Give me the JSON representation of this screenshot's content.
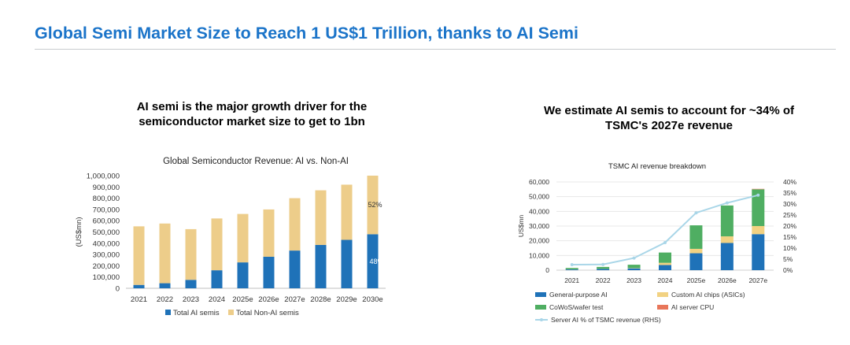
{
  "page": {
    "title": "Global Semi Market Size to Reach 1 US$1 Trillion, thanks to AI Semi",
    "left_heading": [
      "AI semi is the major growth driver for the",
      "semiconductor market size to get to 1bn"
    ],
    "right_heading": [
      "We estimate AI semis to account for ~34% of",
      "TSMC's 2027e revenue"
    ],
    "colors": {
      "title": "#1b74c9",
      "ai_blue": "#1f72b8",
      "non_ai_tan": "#edcd8a",
      "custom_ai": "#f2d282",
      "cowos_green": "#4fae62",
      "cpu_orange": "#e8765a",
      "line_lightblue": "#a9d6e8"
    }
  },
  "chart_data": [
    {
      "type": "bar",
      "title": "Global Semiconductor Revenue: AI vs. Non-AI",
      "ylabel": "(US$mn)",
      "xlabel": "",
      "stacked": true,
      "categories": [
        "2021",
        "2022",
        "2023",
        "2024",
        "2025e",
        "2026e",
        "2027e",
        "2028e",
        "2029e",
        "2030e"
      ],
      "ylim": [
        0,
        1000000
      ],
      "yticks": [
        "0",
        "100,000",
        "200,000",
        "300,000",
        "400,000",
        "500,000",
        "600,000",
        "700,000",
        "800,000",
        "900,000",
        "1,000,000"
      ],
      "series": [
        {
          "name": "Total AI semis",
          "color": "#1f72b8",
          "values": [
            30000,
            45000,
            75000,
            160000,
            230000,
            280000,
            335000,
            385000,
            430000,
            480000
          ]
        },
        {
          "name": "Total Non-AI semis",
          "color": "#edcd8a",
          "values": [
            520000,
            530000,
            450000,
            460000,
            430000,
            420000,
            465000,
            485000,
            490000,
            520000
          ]
        }
      ],
      "annotations": [
        "52%",
        "48%"
      ],
      "legend": "bottom",
      "grid": false
    },
    {
      "type": "bar",
      "title": "TSMC AI revenue breakdown",
      "ylabel": "US$mn",
      "xlabel": "",
      "stacked": true,
      "categories": [
        "2021",
        "2022",
        "2023",
        "2024",
        "2025e",
        "2026e",
        "2027e"
      ],
      "ylim": [
        0,
        60000
      ],
      "yticks": [
        "0",
        "10,000",
        "20,000",
        "30,000",
        "40,000",
        "50,000",
        "60,000"
      ],
      "y2lim": [
        0,
        40
      ],
      "y2ticks": [
        "0%",
        "5%",
        "10%",
        "15%",
        "20%",
        "25%",
        "30%",
        "35%",
        "40%"
      ],
      "series": [
        {
          "name": "General-purpose AI",
          "kind": "bar",
          "color": "#1f72b8",
          "values": [
            500,
            800,
            1200,
            3500,
            11500,
            18500,
            24500
          ]
        },
        {
          "name": "Custom AI chips (ASICs)",
          "kind": "bar",
          "color": "#f2d282",
          "values": [
            100,
            100,
            200,
            1500,
            3000,
            4500,
            5500
          ]
        },
        {
          "name": "CoWoS/wafer test",
          "kind": "bar",
          "color": "#4fae62",
          "values": [
            900,
            1300,
            2300,
            7000,
            16000,
            21000,
            25000
          ]
        },
        {
          "name": "AI server CPU",
          "kind": "bar",
          "color": "#e8765a",
          "values": [
            0,
            0,
            0,
            0,
            0,
            0,
            300
          ]
        },
        {
          "name": "Server AI % of TSMC revenue (RHS)",
          "kind": "line",
          "axis": "right",
          "color": "#a9d6e8",
          "values": [
            2.5,
            2.6,
            5.5,
            12.5,
            26,
            30.5,
            34
          ]
        }
      ],
      "legend": "bottom",
      "grid": true
    }
  ]
}
